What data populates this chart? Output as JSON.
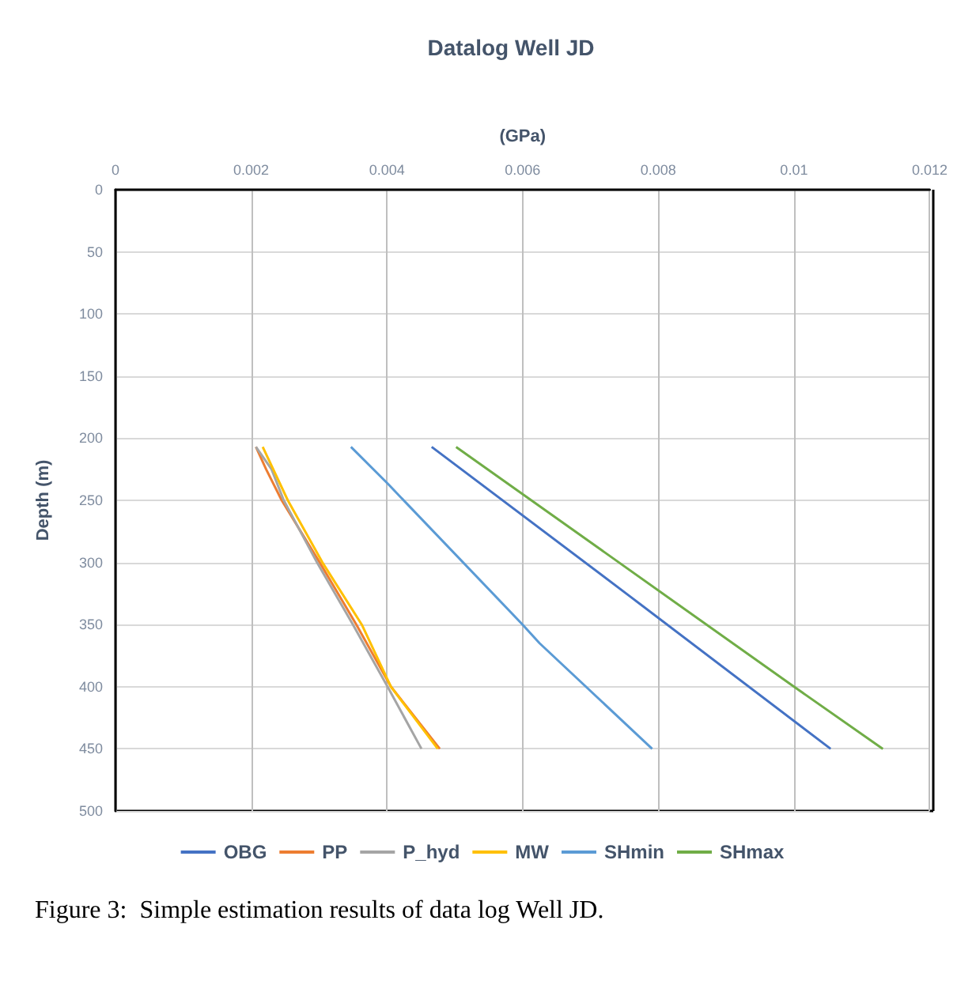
{
  "chart_data": {
    "type": "line",
    "title": "Datalog Well JD",
    "xlabel": "(GPa)",
    "ylabel": "Depth (m)",
    "xlim": [
      0,
      0.012
    ],
    "xticks": [
      0,
      0.002,
      0.004,
      0.006,
      0.008,
      0.01,
      0.012
    ],
    "ylim": [
      500,
      0
    ],
    "yticks": [
      0,
      50,
      100,
      150,
      200,
      250,
      300,
      350,
      400,
      450,
      500
    ],
    "grid": true,
    "legend": "bottom",
    "marker": "none",
    "line_style": "solid",
    "series": [
      {
        "name": "OBG",
        "color": "#4472c4",
        "x": [
          0.00466,
          0.0076,
          0.01054
        ],
        "values": [
          207,
          328,
          450
        ]
      },
      {
        "name": "PP",
        "color": "#ed7d31",
        "x": [
          0.00207,
          0.00222,
          0.00245,
          0.00301,
          0.00355,
          0.00406,
          0.00478
        ],
        "values": [
          207,
          225,
          250,
          300,
          350,
          400,
          450
        ]
      },
      {
        "name": "P_hyd",
        "color": "#a5a5a5",
        "x": [
          0.00207,
          0.0023,
          0.00248,
          0.00297,
          0.0035,
          0.00401,
          0.00451
        ],
        "values": [
          207,
          225,
          250,
          300,
          350,
          400,
          450
        ]
      },
      {
        "name": "MW",
        "color": "#ffc000",
        "x": [
          0.00217,
          0.00254,
          0.00305,
          0.00363,
          0.00406,
          0.00475
        ],
        "values": [
          207,
          250,
          300,
          350,
          400,
          450
        ]
      },
      {
        "name": "SHmin",
        "color": "#5b9bd5",
        "x": [
          0.00347,
          0.00402,
          0.006,
          0.00625,
          0.00791
        ],
        "values": [
          207,
          237,
          350,
          365,
          450
        ]
      },
      {
        "name": "SHmax",
        "color": "#70ad47",
        "x": [
          0.00502,
          0.01,
          0.01131
        ],
        "values": [
          207,
          400,
          450
        ]
      }
    ],
    "annotations": [
      "Figure 3:  Simple estimation results of data log Well JD."
    ]
  }
}
